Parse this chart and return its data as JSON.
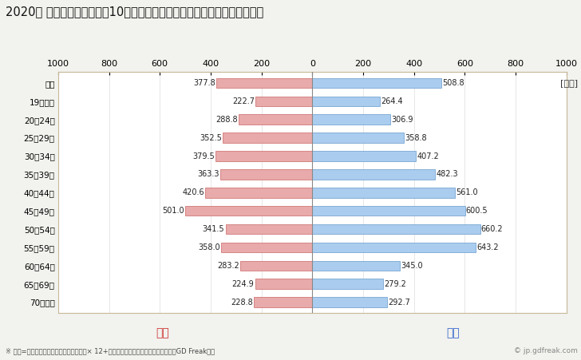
{
  "title": "2020年 民間企業（従業者数10人以上）フルタイム労働者の男女別平均年収",
  "unit_label": "[万円]",
  "footnote": "※ 年収=「きまって支給する現金給与額」× 12+「年間賞与その他特別給与額」としてGD Freak推計",
  "watermark": "© jp.gdfreak.com",
  "categories": [
    "全体",
    "19歳以下",
    "20～24歳",
    "25～29歳",
    "30～34歳",
    "35～39歳",
    "40～44歳",
    "45～49歳",
    "50～54歳",
    "55～59歳",
    "60～64歳",
    "65～69歳",
    "70歳以上"
  ],
  "female_values": [
    377.8,
    222.7,
    288.8,
    352.5,
    379.5,
    363.3,
    420.6,
    501.0,
    341.5,
    358.0,
    283.2,
    224.9,
    228.8
  ],
  "male_values": [
    508.8,
    264.4,
    306.9,
    358.8,
    407.2,
    482.3,
    561.0,
    600.5,
    660.2,
    643.2,
    345.0,
    279.2,
    292.7
  ],
  "female_color": "#E8AAAA",
  "male_color": "#AACCEE",
  "female_border_color": "#CC6666",
  "male_border_color": "#6699CC",
  "female_label": "女性",
  "male_label": "男性",
  "female_label_color": "#CC3333",
  "male_label_color": "#3366CC",
  "xlim": [
    -1000,
    1000
  ],
  "xticks": [
    -1000,
    -800,
    -600,
    -400,
    -200,
    0,
    200,
    400,
    600,
    800,
    1000
  ],
  "xticklabels": [
    "1000",
    "800",
    "600",
    "400",
    "200",
    "0",
    "200",
    "400",
    "600",
    "800",
    "1000"
  ],
  "background_color": "#F2F2EE",
  "plot_bg_color": "#FFFFFF",
  "bar_height": 0.55,
  "title_fontsize": 10.5,
  "axis_fontsize": 8,
  "label_fontsize": 7.5,
  "value_fontsize": 7,
  "legend_fontsize": 10,
  "footnote_fontsize": 6,
  "grid_color": "#DDDDDD",
  "border_color": "#C8B898",
  "centerline_color": "#888888"
}
